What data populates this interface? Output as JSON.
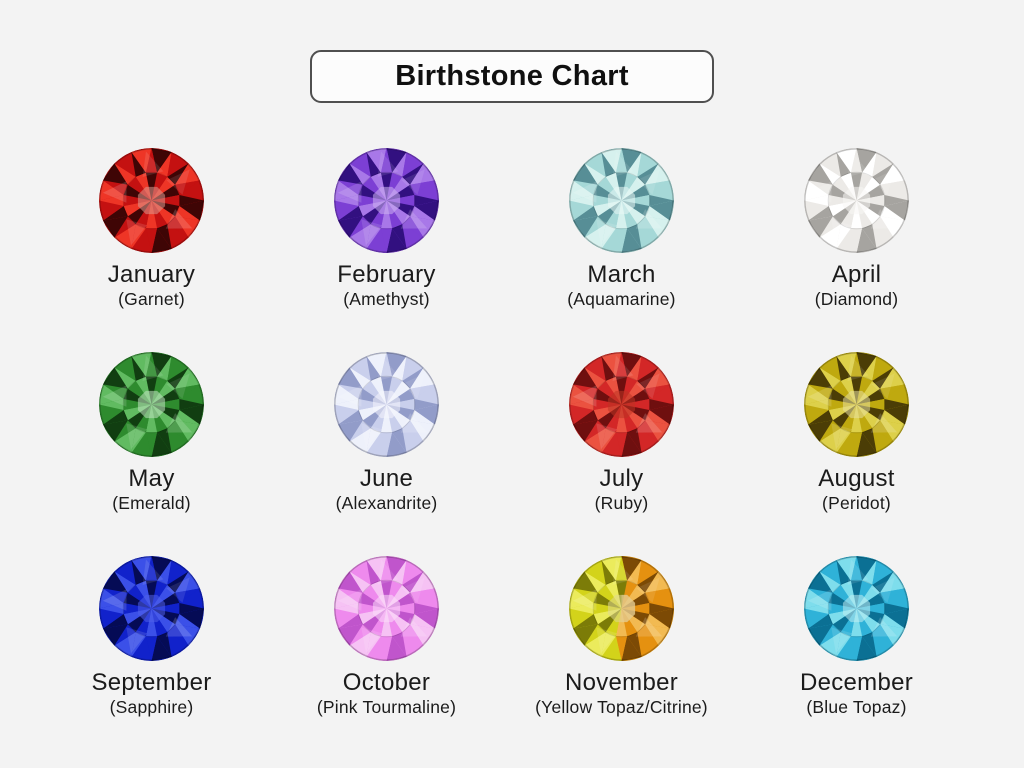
{
  "page": {
    "title": "Birthstone Chart",
    "background_color": "#f3f3f3",
    "title_border_color": "#4f4f4f",
    "text_color": "#1b1b1b"
  },
  "stones": [
    {
      "month": "January",
      "stone": "(Garnet)",
      "colors": {
        "base": "#c41111",
        "dark": "#3f0505",
        "light": "#ee3526",
        "pale": "#dd9a90"
      }
    },
    {
      "month": "February",
      "stone": "(Amethyst)",
      "colors": {
        "base": "#7c3fd4",
        "dark": "#321080",
        "light": "#a878e8",
        "pale": "#cdb2f0"
      }
    },
    {
      "month": "March",
      "stone": "(Aquamarine)",
      "colors": {
        "base": "#a5d8d7",
        "dark": "#578e96",
        "light": "#d6f1ee",
        "pale": "#e9f8f5"
      }
    },
    {
      "month": "April",
      "stone": "(Diamond)",
      "colors": {
        "base": "#eceae7",
        "dark": "#a6a4a0",
        "light": "#ffffff",
        "pale": "#f7f6f4"
      }
    },
    {
      "month": "May",
      "stone": "(Emerald)",
      "colors": {
        "base": "#2e8b2e",
        "dark": "#113e11",
        "light": "#61bb61",
        "pale": "#c4e6c4"
      }
    },
    {
      "month": "June",
      "stone": "(Alexandrite)",
      "colors": {
        "base": "#c9cfec",
        "dark": "#929cc9",
        "light": "#eef1fb",
        "pale": "#f5f6fd"
      }
    },
    {
      "month": "July",
      "stone": "(Ruby)",
      "colors": {
        "base": "#d32727",
        "dark": "#6f0f0f",
        "light": "#eb5240",
        "pale": "#bc3425"
      }
    },
    {
      "month": "August",
      "stone": "(Peridot)",
      "colors": {
        "base": "#bfa90f",
        "dark": "#4b3d06",
        "light": "#ddd04a",
        "pale": "#e7e0a2"
      }
    },
    {
      "month": "September",
      "stone": "(Sapphire)",
      "colors": {
        "base": "#1122cb",
        "dark": "#050b55",
        "light": "#3b50e8",
        "pale": "#5060ea"
      }
    },
    {
      "month": "October",
      "stone": "(Pink Tourmaline)",
      "colors": {
        "base": "#ee8aed",
        "dark": "#c055cc",
        "light": "#f6c2f4",
        "pale": "#fbdff9"
      }
    },
    {
      "month": "November",
      "stone": "(Yellow Topaz/Citrine)",
      "colors": {
        "base": "#d3d31a",
        "dark": "#7c7c08",
        "light": "#ebeb5c",
        "pale": "#ded795"
      },
      "colors2": {
        "base": "#e59110",
        "dark": "#7c4a05",
        "light": "#f2ba52",
        "pale": "#e9c98f"
      }
    },
    {
      "month": "December",
      "stone": "(Blue Topaz)",
      "colors": {
        "base": "#2fb2d8",
        "dark": "#0b7094",
        "light": "#7eddec",
        "pale": "#c2eef3"
      }
    }
  ]
}
